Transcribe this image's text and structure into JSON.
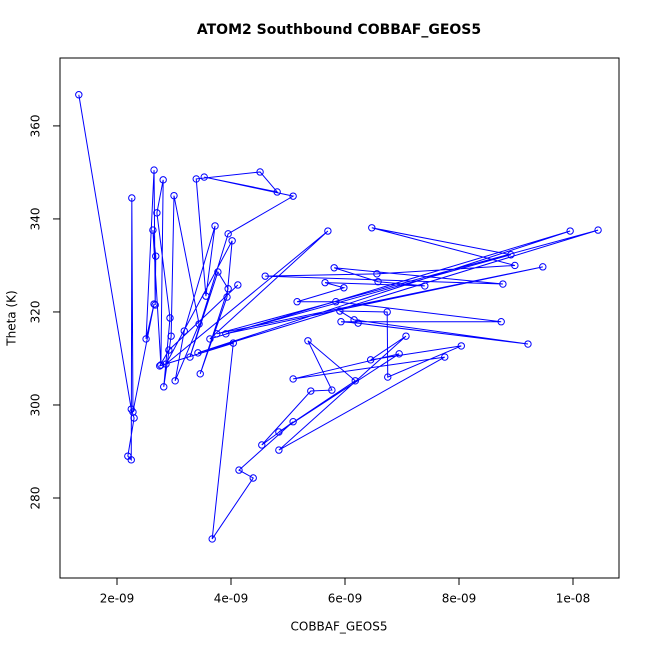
{
  "chart_data": {
    "type": "line",
    "title": "ATOM2 Southbound COBBAF_GEOS5",
    "xlabel": "COBBAF_GEOS5",
    "ylabel": "Theta (K)",
    "color": "#0000ff",
    "marker": "open-circle",
    "x": [
      1.33e-09,
      2.25e-09,
      2.3e-09,
      2.19e-09,
      2.25e-09,
      2.26e-09,
      2.28e-09,
      2.65e-09,
      2.51e-09,
      2.65e-09,
      2.67e-09,
      2.68e-09,
      2.63e-09,
      2.77e-09,
      2.81e-09,
      2.7e-09,
      2.93e-09,
      2.82e-09,
      2.95e-09,
      3e-09,
      3.44e-09,
      3.02e-09,
      3.18e-09,
      3.72e-09,
      3.56e-09,
      3.39e-09,
      4.51e-09,
      4.81e-09,
      3.53e-09,
      5.09e-09,
      3.95e-09,
      3.28e-09,
      3.77e-09,
      3.95e-09,
      3.46e-09,
      3.93e-09,
      4.02e-09,
      2.86e-09,
      5.7e-09,
      3.63e-09,
      9.95e-09,
      3.42e-09,
      1.044e-08,
      3.75e-09,
      9.47e-09,
      3.91e-09,
      8.91e-09,
      6.47e-09,
      8.98e-09,
      6.56e-09,
      4.6e-09,
      8.77e-09,
      5.81e-09,
      6.58e-09,
      7.4e-09,
      5.65e-09,
      5.98e-09,
      5.16e-09,
      5.84e-09,
      8.74e-09,
      5.93e-09,
      6.23e-09,
      9.21e-09,
      6.16e-09,
      5.91e-09,
      6.74e-09,
      6.75e-09,
      8.04e-09,
      6.45e-09,
      7.07e-09,
      4.84e-09,
      7.75e-09,
      5.09e-09,
      6.95e-09,
      4.84e-09,
      6.18e-09,
      5.35e-09,
      5.77e-09,
      5.4e-09,
      4.54e-09,
      5.09e-09,
      4.14e-09,
      4.39e-09,
      3.67e-09,
      4.04e-09,
      2.75e-09,
      2.91e-09,
      4.12e-09
    ],
    "values": [
      366.7,
      299.1,
      297.2,
      289.0,
      288.2,
      344.5,
      298.5,
      321.7,
      314.2,
      350.5,
      321.5,
      332.0,
      337.6,
      308.6,
      348.4,
      341.3,
      318.7,
      303.9,
      314.8,
      345.0,
      317.4,
      305.2,
      315.9,
      338.5,
      323.4,
      348.6,
      350.1,
      345.8,
      349.0,
      344.9,
      336.8,
      310.3,
      328.6,
      325.0,
      306.7,
      323.2,
      335.3,
      308.8,
      337.4,
      314.2,
      337.4,
      311.2,
      337.6,
      315.3,
      329.7,
      315.3,
      332.3,
      338.1,
      330.0,
      328.2,
      327.7,
      326.0,
      329.5,
      326.5,
      325.6,
      326.3,
      325.2,
      322.2,
      322.2,
      317.9,
      317.9,
      317.6,
      313.1,
      318.3,
      320.2,
      320.0,
      306.0,
      312.7,
      309.7,
      314.8,
      290.3,
      310.3,
      305.6,
      311.0,
      294.2,
      305.2,
      313.8,
      303.2,
      303.0,
      291.4,
      296.4,
      286.0,
      284.3,
      271.2,
      313.3,
      308.4,
      311.8,
      325.8
    ],
    "xlim": [
      1e-09,
      1.0807e-08
    ],
    "ylim": [
      262.8,
      374.6
    ],
    "xticks": [
      {
        "value": 2e-09,
        "label": "2e-09"
      },
      {
        "value": 4e-09,
        "label": "4e-09"
      },
      {
        "value": 6e-09,
        "label": "6e-09"
      },
      {
        "value": 8e-09,
        "label": "8e-09"
      },
      {
        "value": 1e-08,
        "label": "1e-08"
      }
    ],
    "yticks": [
      280,
      300,
      320,
      340,
      360
    ]
  }
}
